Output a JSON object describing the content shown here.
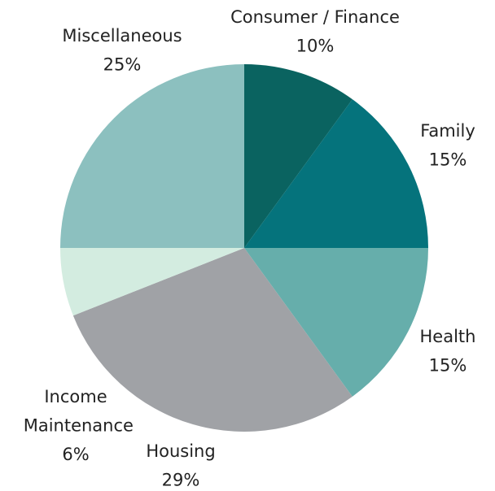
{
  "chart_data": {
    "type": "pie",
    "categories": [
      "Consumer / Finance",
      "Family",
      "Health",
      "Housing",
      "Income Maintenance",
      "Miscellaneous"
    ],
    "values": [
      10,
      15,
      15,
      29,
      6,
      25
    ],
    "value_labels": [
      "10%",
      "15%",
      "15%",
      "29%",
      "6%",
      "25%"
    ],
    "colors": [
      "#0a6360",
      "#05737c",
      "#66aeab",
      "#a0a2a6",
      "#d3ece0",
      "#8cc0bf"
    ]
  }
}
